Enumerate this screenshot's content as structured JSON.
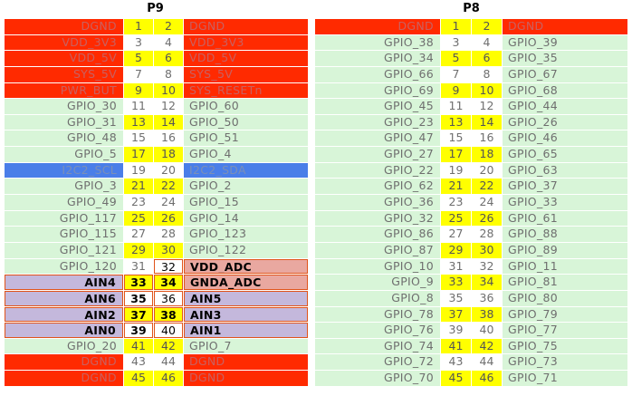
{
  "headers": {
    "p9": "P9",
    "p8": "P8"
  },
  "p9_rows": [
    {
      "left": "DGND",
      "a": "1",
      "b": "2",
      "right": "DGND",
      "kind": "power"
    },
    {
      "left": "VDD_3V3",
      "a": "3",
      "b": "4",
      "right": "VDD_3V3",
      "kind": "power"
    },
    {
      "left": "VDD_5V",
      "a": "5",
      "b": "6",
      "right": "VDD_5V",
      "kind": "power"
    },
    {
      "left": "SYS_5V",
      "a": "7",
      "b": "8",
      "right": "SYS_5V",
      "kind": "power"
    },
    {
      "left": "PWR_BUT",
      "a": "9",
      "b": "10",
      "right": "SYS_RESETn",
      "kind": "power"
    },
    {
      "left": "GPIO_30",
      "a": "11",
      "b": "12",
      "right": "GPIO_60",
      "kind": "gpio"
    },
    {
      "left": "GPIO_31",
      "a": "13",
      "b": "14",
      "right": "GPIO_50",
      "kind": "gpio"
    },
    {
      "left": "GPIO_48",
      "a": "15",
      "b": "16",
      "right": "GPIO_51",
      "kind": "gpio"
    },
    {
      "left": "GPIO_5",
      "a": "17",
      "b": "18",
      "right": "GPIO_4",
      "kind": "gpio"
    },
    {
      "left": "I2C2_SCL",
      "a": "19",
      "b": "20",
      "right": "I2C2_SDA",
      "kind": "i2c"
    },
    {
      "left": "GPIO_3",
      "a": "21",
      "b": "22",
      "right": "GPIO_2",
      "kind": "gpio"
    },
    {
      "left": "GPIO_49",
      "a": "23",
      "b": "24",
      "right": "GPIO_15",
      "kind": "gpio"
    },
    {
      "left": "GPIO_117",
      "a": "25",
      "b": "26",
      "right": "GPIO_14",
      "kind": "gpio"
    },
    {
      "left": "GPIO_115",
      "a": "27",
      "b": "28",
      "right": "GPIO_123",
      "kind": "gpio"
    },
    {
      "left": "GPIO_121",
      "a": "29",
      "b": "30",
      "right": "GPIO_122",
      "kind": "gpio"
    },
    {
      "left": "GPIO_120",
      "a": "31",
      "b": "32",
      "right": "VDD_ADC",
      "kind": "gpio-adc"
    },
    {
      "left": "AIN4",
      "a": "33",
      "b": "34",
      "right": "GNDA_ADC",
      "kind": "ain-adc"
    },
    {
      "left": "AIN6",
      "a": "35",
      "b": "36",
      "right": "AIN5",
      "kind": "ain"
    },
    {
      "left": "AIN2",
      "a": "37",
      "b": "38",
      "right": "AIN3",
      "kind": "ain"
    },
    {
      "left": "AIN0",
      "a": "39",
      "b": "40",
      "right": "AIN1",
      "kind": "ain"
    },
    {
      "left": "GPIO_20",
      "a": "41",
      "b": "42",
      "right": "GPIO_7",
      "kind": "gpio"
    },
    {
      "left": "DGND",
      "a": "43",
      "b": "44",
      "right": "DGND",
      "kind": "power"
    },
    {
      "left": "DGND",
      "a": "45",
      "b": "46",
      "right": "DGND",
      "kind": "power"
    }
  ],
  "p8_rows": [
    {
      "left": "DGND",
      "a": "1",
      "b": "2",
      "right": "DGND",
      "kind": "power"
    },
    {
      "left": "GPIO_38",
      "a": "3",
      "b": "4",
      "right": "GPIO_39",
      "kind": "gpio"
    },
    {
      "left": "GPIO_34",
      "a": "5",
      "b": "6",
      "right": "GPIO_35",
      "kind": "gpio"
    },
    {
      "left": "GPIO_66",
      "a": "7",
      "b": "8",
      "right": "GPIO_67",
      "kind": "gpio"
    },
    {
      "left": "GPIO_69",
      "a": "9",
      "b": "10",
      "right": "GPIO_68",
      "kind": "gpio"
    },
    {
      "left": "GPIO_45",
      "a": "11",
      "b": "12",
      "right": "GPIO_44",
      "kind": "gpio"
    },
    {
      "left": "GPIO_23",
      "a": "13",
      "b": "14",
      "right": "GPIO_26",
      "kind": "gpio"
    },
    {
      "left": "GPIO_47",
      "a": "15",
      "b": "16",
      "right": "GPIO_46",
      "kind": "gpio"
    },
    {
      "left": "GPIO_27",
      "a": "17",
      "b": "18",
      "right": "GPIO_65",
      "kind": "gpio"
    },
    {
      "left": "GPIO_22",
      "a": "19",
      "b": "20",
      "right": "GPIO_63",
      "kind": "gpio"
    },
    {
      "left": "GPIO_62",
      "a": "21",
      "b": "22",
      "right": "GPIO_37",
      "kind": "gpio"
    },
    {
      "left": "GPIO_36",
      "a": "23",
      "b": "24",
      "right": "GPIO_33",
      "kind": "gpio"
    },
    {
      "left": "GPIO_32",
      "a": "25",
      "b": "26",
      "right": "GPIO_61",
      "kind": "gpio"
    },
    {
      "left": "GPIO_86",
      "a": "27",
      "b": "28",
      "right": "GPIO_88",
      "kind": "gpio"
    },
    {
      "left": "GPIO_87",
      "a": "29",
      "b": "30",
      "right": "GPIO_89",
      "kind": "gpio"
    },
    {
      "left": "GPIO_10",
      "a": "31",
      "b": "32",
      "right": "GPIO_11",
      "kind": "gpio"
    },
    {
      "left": "GPIO_9",
      "a": "33",
      "b": "34",
      "right": "GPIO_81",
      "kind": "gpio"
    },
    {
      "left": "GPIO_8",
      "a": "35",
      "b": "36",
      "right": "GPIO_80",
      "kind": "gpio"
    },
    {
      "left": "GPIO_78",
      "a": "37",
      "b": "38",
      "right": "GPIO_79",
      "kind": "gpio"
    },
    {
      "left": "GPIO_76",
      "a": "39",
      "b": "40",
      "right": "GPIO_77",
      "kind": "gpio"
    },
    {
      "left": "GPIO_74",
      "a": "41",
      "b": "42",
      "right": "GPIO_75",
      "kind": "gpio"
    },
    {
      "left": "GPIO_72",
      "a": "43",
      "b": "44",
      "right": "GPIO_73",
      "kind": "gpio"
    },
    {
      "left": "GPIO_70",
      "a": "45",
      "b": "46",
      "right": "GPIO_71",
      "kind": "gpio"
    }
  ],
  "colors": {
    "power": "#ff2a00",
    "gpio": "#d8f5d8",
    "i2c": "#4a7ee8",
    "ain": "#c4b8dc",
    "adc": "#e9a8a0",
    "pin_highlight": "#ffff00",
    "analog_border": "#e0541b"
  }
}
